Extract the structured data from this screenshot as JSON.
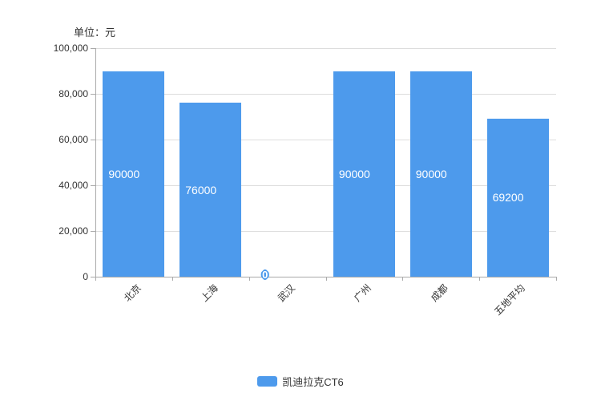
{
  "unit_label": "单位：元",
  "legend": {
    "label": "凯迪拉克CT6",
    "color": "#4D9AEC"
  },
  "colors": {
    "bar": "#4D9AEC",
    "grid": "#dddddd",
    "axis": "#aaaaaa",
    "text": "#333333",
    "bar_value_text": "#ffffff"
  },
  "chart_data": {
    "type": "bar",
    "title": "单位：元",
    "categories": [
      "北京",
      "上海",
      "武汉",
      "广州",
      "成都",
      "五地平均"
    ],
    "values": [
      90000,
      76000,
      0,
      90000,
      90000,
      69200
    ],
    "value_labels": [
      "90000",
      "76000",
      "0",
      "90000",
      "90000",
      "69200"
    ],
    "series": [
      {
        "name": "凯迪拉克CT6",
        "values": [
          90000,
          76000,
          0,
          90000,
          90000,
          69200
        ]
      }
    ],
    "xlabel": "",
    "ylabel": "单位：元",
    "ylim": [
      0,
      100000
    ],
    "ytick_step": 20000,
    "ytick_labels": [
      "0",
      "20,000",
      "40,000",
      "60,000",
      "80,000",
      "100,000"
    ],
    "grid": true,
    "legend_position": "bottom",
    "x_label_rotation": -45
  }
}
